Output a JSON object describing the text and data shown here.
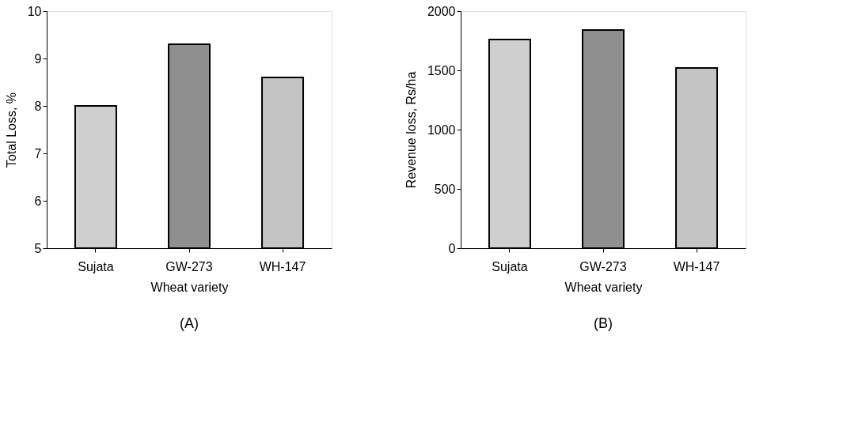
{
  "chart_data": [
    {
      "type": "bar",
      "categories": [
        "Sujata",
        "GW-273",
        "WH-147"
      ],
      "values": [
        8.0,
        9.3,
        8.6
      ],
      "colors": [
        "#cfcfcf",
        "#8f8f8f",
        "#c4c4c4"
      ],
      "xlabel": "Wheat variety",
      "ylabel": "Total Loss, %",
      "ylim": [
        5,
        10
      ],
      "yticks": [
        5,
        6,
        7,
        8,
        9,
        10
      ],
      "grid": false,
      "annotations": [
        "(A)"
      ]
    },
    {
      "type": "bar",
      "categories": [
        "Sujata",
        "GW-273",
        "WH-147"
      ],
      "values": [
        1760,
        1840,
        1520
      ],
      "colors": [
        "#cfcfcf",
        "#8f8f8f",
        "#c4c4c4"
      ],
      "xlabel": "Wheat variety",
      "ylabel": "Revenue loss, Rs/ha",
      "ylim": [
        0,
        2000
      ],
      "yticks": [
        0,
        500,
        1000,
        1500,
        2000
      ],
      "grid": false,
      "annotations": [
        "(B)"
      ]
    }
  ]
}
